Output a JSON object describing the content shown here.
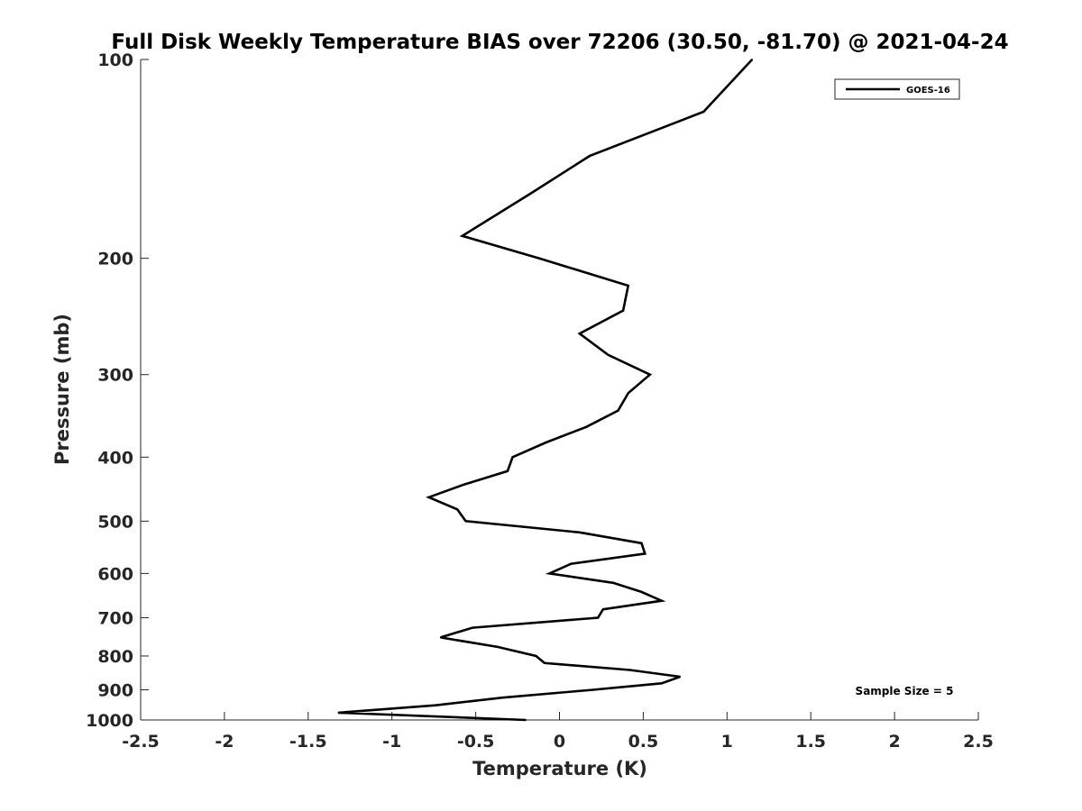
{
  "chart_data": {
    "type": "line",
    "title": "Full Disk Weekly Temperature BIAS over 72206 (30.50, -81.70) @ 2021-04-24",
    "xlabel": "Temperature (K)",
    "ylabel": "Pressure (mb)",
    "xlim": [
      -2.5,
      2.5
    ],
    "ylim": [
      100,
      1000
    ],
    "y_scale": "log",
    "y_reversed": true,
    "x_ticks": [
      -2.5,
      -2,
      -1.5,
      -1,
      -0.5,
      0,
      0.5,
      1,
      1.5,
      2,
      2.5
    ],
    "x_tick_labels": [
      "-2.5",
      "-2",
      "-1.5",
      "-1",
      "-0.5",
      "0",
      "0.5",
      "1",
      "1.5",
      "2",
      "2.5"
    ],
    "y_ticks": [
      100,
      200,
      300,
      400,
      500,
      600,
      700,
      800,
      900,
      1000
    ],
    "y_tick_labels": [
      "100",
      "200",
      "300",
      "400",
      "500",
      "600",
      "700",
      "800",
      "900",
      "1000"
    ],
    "grid": false,
    "legend_position": "top-right",
    "annotation": "Sample Size = 5",
    "series": [
      {
        "name": "GOES-16",
        "color": "#000000",
        "points": [
          {
            "x": 1.15,
            "y": 100
          },
          {
            "x": 0.86,
            "y": 120
          },
          {
            "x": 0.18,
            "y": 140
          },
          {
            "x": -0.18,
            "y": 160
          },
          {
            "x": -0.58,
            "y": 185
          },
          {
            "x": -0.12,
            "y": 200
          },
          {
            "x": 0.41,
            "y": 220
          },
          {
            "x": 0.38,
            "y": 240
          },
          {
            "x": 0.12,
            "y": 260
          },
          {
            "x": 0.29,
            "y": 280
          },
          {
            "x": 0.54,
            "y": 300
          },
          {
            "x": 0.41,
            "y": 320
          },
          {
            "x": 0.35,
            "y": 340
          },
          {
            "x": 0.16,
            "y": 360
          },
          {
            "x": -0.08,
            "y": 380
          },
          {
            "x": -0.28,
            "y": 400
          },
          {
            "x": -0.31,
            "y": 420
          },
          {
            "x": -0.57,
            "y": 440
          },
          {
            "x": -0.78,
            "y": 460
          },
          {
            "x": -0.61,
            "y": 480
          },
          {
            "x": -0.56,
            "y": 500
          },
          {
            "x": 0.12,
            "y": 520
          },
          {
            "x": 0.49,
            "y": 540
          },
          {
            "x": 0.51,
            "y": 560
          },
          {
            "x": 0.07,
            "y": 580
          },
          {
            "x": -0.06,
            "y": 600
          },
          {
            "x": 0.32,
            "y": 620
          },
          {
            "x": 0.49,
            "y": 640
          },
          {
            "x": 0.61,
            "y": 660
          },
          {
            "x": 0.26,
            "y": 680
          },
          {
            "x": 0.23,
            "y": 700
          },
          {
            "x": -0.52,
            "y": 725
          },
          {
            "x": -0.71,
            "y": 750
          },
          {
            "x": -0.37,
            "y": 775
          },
          {
            "x": -0.14,
            "y": 800
          },
          {
            "x": -0.09,
            "y": 820
          },
          {
            "x": 0.42,
            "y": 840
          },
          {
            "x": 0.72,
            "y": 860
          },
          {
            "x": 0.61,
            "y": 880
          },
          {
            "x": 0.2,
            "y": 900
          },
          {
            "x": -0.34,
            "y": 925
          },
          {
            "x": -0.74,
            "y": 950
          },
          {
            "x": -1.32,
            "y": 975
          },
          {
            "x": -0.2,
            "y": 1000
          }
        ]
      }
    ]
  }
}
